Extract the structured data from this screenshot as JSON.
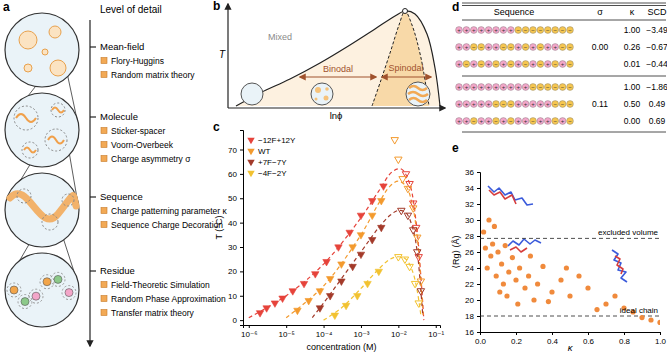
{
  "diagram_a": {
    "panel": "a",
    "title": "Level of detail",
    "levels": [
      {
        "name": "Mean-field",
        "items": [
          "Flory-Huggins",
          "Random matrix theory"
        ]
      },
      {
        "name": "Molecule",
        "items": [
          "Sticker-spacer",
          "Voorn-Overbeek",
          "Charge asymmetry σ"
        ]
      },
      {
        "name": "Sequence",
        "items": [
          "Charge patterning parameter κ",
          "Sequence Charge Decoration"
        ]
      },
      {
        "name": "Residue",
        "items": [
          "Field-Theoretic Simulation",
          "Random Phase Approximation",
          "Transfer matrix theory"
        ]
      }
    ]
  },
  "diagram_b": {
    "panel": "b",
    "y_label": "T",
    "x_label": "lnϕ",
    "mixed": "Mixed",
    "binodal": "Binodal",
    "spinodal": "Spinodal"
  },
  "table_d": {
    "panel": "d",
    "header": {
      "sequence": "Sequence",
      "sigma": "σ",
      "kappa": "κ",
      "scd": "SCD"
    },
    "bead_colors": {
      "+": "#f3a6c9",
      "−": "#f6c64f"
    },
    "groups": [
      {
        "sigma": "0.00",
        "rows": [
          {
            "sequence": [
              "+",
              "+",
              "+",
              "+",
              "+",
              "+",
              "+",
              "+",
              "−",
              "−",
              "−",
              "−",
              "−",
              "−",
              "−",
              "−"
            ],
            "kappa": "1.00",
            "scd": "−3.49"
          },
          {
            "sequence": [
              "+",
              "+",
              "−",
              "−",
              "+",
              "+",
              "−",
              "−",
              "+",
              "−",
              "+",
              "−",
              "+",
              "+",
              "−",
              "−"
            ],
            "kappa": "0.26",
            "scd": "−0.67"
          },
          {
            "sequence": [
              "+",
              "−",
              "+",
              "−",
              "+",
              "−",
              "+",
              "−",
              "+",
              "−",
              "+",
              "−",
              "+",
              "−",
              "+",
              "−"
            ],
            "kappa": "0.01",
            "scd": "−0.44"
          }
        ]
      },
      {
        "sigma": "0.11",
        "rows": [
          {
            "sequence": [
              "+",
              "+",
              "+",
              "+",
              "+",
              "+",
              "+",
              "+",
              "+",
              "+",
              "−",
              "−",
              "−",
              "−",
              "−",
              "−"
            ],
            "kappa": "1.00",
            "scd": "−1.86"
          },
          {
            "sequence": [
              "+",
              "+",
              "+",
              "+",
              "+",
              "−",
              "−",
              "−",
              "+",
              "+",
              "+",
              "+",
              "+",
              "−",
              "−",
              "−"
            ],
            "kappa": "0.50",
            "scd": "0.49"
          },
          {
            "sequence": [
              "+",
              "+",
              "−",
              "+",
              "+",
              "−",
              "+",
              "−",
              "+",
              "+",
              "−",
              "+",
              "+",
              "−",
              "+",
              "−"
            ],
            "kappa": "0.00",
            "scd": "0.69"
          }
        ]
      }
    ]
  },
  "chart_data": [
    {
      "panel": "c",
      "type": "scatter",
      "x_label": "concentration (M)",
      "y_label": "T (°C)",
      "log": "x",
      "xlim": [
        7e-07,
        0.13
      ],
      "xticks": [
        {
          "value": 1e-06,
          "label": "10⁻⁶"
        },
        {
          "value": 1e-05,
          "label": "10⁻⁵"
        },
        {
          "value": 0.0001,
          "label": "10⁻⁴"
        },
        {
          "value": 0.001,
          "label": "10⁻³"
        },
        {
          "value": 0.01,
          "label": "10⁻²"
        },
        {
          "value": 0.1,
          "label": "10⁻¹"
        }
      ],
      "ylim": [
        -2,
        78
      ],
      "yticks": [
        0,
        10,
        20,
        30,
        40,
        50,
        60,
        70
      ],
      "legend": "upper left",
      "series": [
        {
          "name": "−12F+12Y",
          "color": "#e6433b",
          "marker": "triangle-down",
          "line_style": "dashed",
          "x": [
            2e-06,
            3e-06,
            5e-06,
            8e-06,
            1.5e-05,
            3e-05,
            6e-05,
            0.00012,
            0.00025,
            0.0005,
            0.001,
            0.002,
            0.004
          ],
          "values": [
            3,
            5,
            7,
            9,
            12,
            15,
            19,
            24,
            30,
            36,
            43,
            49,
            55
          ],
          "dense_x": [
            0.016,
            0.02,
            0.025,
            0.03,
            0.035
          ],
          "dense_values": [
            60,
            56,
            48,
            38,
            26
          ],
          "fit_x": [
            1e-06,
            1e-05,
            0.0001,
            0.001,
            0.003,
            0.007,
            0.012,
            0.02,
            0.03,
            0.04,
            0.048
          ],
          "fit_values": [
            1,
            10,
            23,
            42,
            53,
            61,
            62,
            56,
            40,
            18,
            0
          ]
        },
        {
          "name": "WT",
          "color": "#f39a2e",
          "marker": "triangle-down",
          "line_style": "dashed",
          "x": [
            2e-05,
            4e-05,
            8e-05,
            0.00015,
            0.0003,
            0.0006,
            0.001,
            0.002,
            0.0035
          ],
          "values": [
            4,
            8,
            12,
            17,
            23,
            30,
            35,
            43,
            49
          ],
          "dense_x": [
            0.008,
            0.01,
            0.013,
            0.018,
            0.025,
            0.032,
            0.04
          ],
          "dense_values": [
            74,
            66,
            58,
            54,
            46,
            34,
            16
          ],
          "fit_x": [
            1e-05,
            0.0001,
            0.001,
            0.003,
            0.006,
            0.01,
            0.016,
            0.024,
            0.032,
            0.04,
            0.046
          ],
          "fit_values": [
            1,
            14,
            35,
            48,
            55,
            57,
            55,
            47,
            34,
            16,
            2
          ]
        },
        {
          "name": "+7F−7Y",
          "color": "#a33a2a",
          "marker": "triangle-down",
          "line_style": "dashed",
          "x": [
            8e-05,
            0.00015,
            0.0003,
            0.0006,
            0.001,
            0.002,
            0.0035
          ],
          "values": [
            5,
            10,
            16,
            22,
            27,
            33,
            38
          ],
          "dense_x": [
            0.012,
            0.018,
            0.025,
            0.032,
            0.04
          ],
          "dense_values": [
            45,
            43,
            37,
            28,
            12
          ],
          "fit_x": [
            5e-05,
            0.0001,
            0.001,
            0.003,
            0.006,
            0.01,
            0.016,
            0.024,
            0.032,
            0.04,
            0.045
          ],
          "fit_values": [
            1,
            7,
            28,
            38,
            43,
            45,
            44,
            38,
            28,
            12,
            2
          ]
        },
        {
          "name": "−4F−2Y",
          "color": "#f2c230",
          "marker": "triangle-down",
          "line_style": "dashed",
          "x": [
            0.0002,
            0.0004,
            0.0008,
            0.0015,
            0.003
          ],
          "values": [
            2,
            6,
            10,
            15,
            20
          ],
          "dense_x": [
            0.01,
            0.015,
            0.02,
            0.028,
            0.035
          ],
          "dense_values": [
            26,
            25,
            22,
            15,
            7
          ],
          "fit_x": [
            0.0001,
            0.0003,
            0.001,
            0.003,
            0.006,
            0.01,
            0.016,
            0.024,
            0.032,
            0.04
          ],
          "fit_values": [
            0,
            5,
            13,
            21,
            25,
            26,
            25,
            20,
            12,
            2
          ]
        }
      ]
    },
    {
      "panel": "e",
      "type": "scatter",
      "x_label": "κ",
      "y_label": "⟨Rg⟩ (Å)",
      "xlim": [
        0,
        1.0
      ],
      "xticks": [
        {
          "value": 0,
          "label": "0.0"
        },
        0.2,
        0.4,
        0.6,
        0.8,
        {
          "value": 1,
          "label": "1.0"
        }
      ],
      "ylim": [
        16,
        36
      ],
      "yticks": [
        16,
        18,
        20,
        22,
        24,
        26,
        28,
        30,
        32,
        34,
        36
      ],
      "color": "#f08a3c",
      "marker": "circle",
      "x": [
        0.02,
        0.03,
        0.04,
        0.05,
        0.06,
        0.07,
        0.08,
        0.09,
        0.1,
        0.11,
        0.12,
        0.13,
        0.14,
        0.15,
        0.16,
        0.18,
        0.2,
        0.21,
        0.22,
        0.25,
        0.27,
        0.28,
        0.3,
        0.32,
        0.35,
        0.38,
        0.4,
        0.45,
        0.48,
        0.5,
        0.55,
        0.6,
        0.65,
        0.7,
        0.75,
        0.8,
        0.85,
        0.9,
        0.95,
        1.0
      ],
      "values": [
        28.5,
        26.5,
        24,
        30,
        25.5,
        27,
        29.2,
        23,
        26,
        21,
        24.5,
        22,
        26.8,
        20.5,
        23.5,
        25.3,
        22.5,
        19.5,
        24,
        21.5,
        23,
        25.5,
        20,
        22,
        24.2,
        19.8,
        21,
        22.5,
        24,
        20.5,
        23,
        21.5,
        18.8,
        19.5,
        20.5,
        19,
        18.5,
        17.8,
        17.5,
        17.2
      ],
      "reference_lines": [
        {
          "value": 27.7,
          "label": "excluded volume",
          "line_style": "dashed"
        },
        {
          "value": 18,
          "label": "ideal chain",
          "line_style": "dashed"
        }
      ]
    }
  ]
}
